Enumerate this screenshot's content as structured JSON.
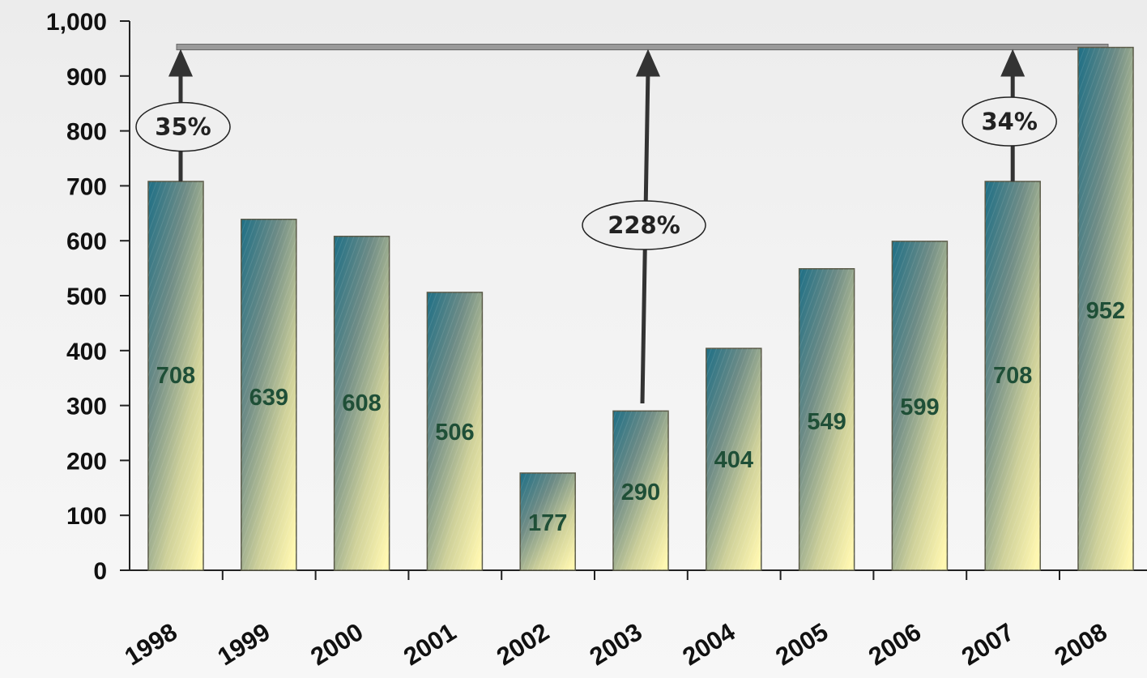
{
  "chart_data": {
    "type": "bar",
    "categories": [
      "1998",
      "1999",
      "2000",
      "2001",
      "2002",
      "2003",
      "2004",
      "2005",
      "2006",
      "2007",
      "2008"
    ],
    "values": [
      708,
      639,
      608,
      506,
      177,
      290,
      404,
      549,
      599,
      708,
      952
    ],
    "data_labels": [
      "708",
      "639",
      "608",
      "506",
      "177",
      "290",
      "404",
      "549",
      "599",
      "708",
      "952"
    ],
    "ylim": [
      0,
      1000
    ],
    "yticks": [
      0,
      100,
      200,
      300,
      400,
      500,
      600,
      700,
      800,
      900,
      1000
    ],
    "ytick_labels": [
      "0",
      "100",
      "200",
      "300",
      "400",
      "500",
      "600",
      "700",
      "800",
      "900",
      "1,000"
    ],
    "grid": false,
    "reference_line": {
      "value": 952
    },
    "annotations": [
      {
        "label": "35%",
        "from": "1998"
      },
      {
        "label": "228%",
        "from": "2003"
      },
      {
        "label": "34%",
        "from": "2007"
      }
    ]
  }
}
